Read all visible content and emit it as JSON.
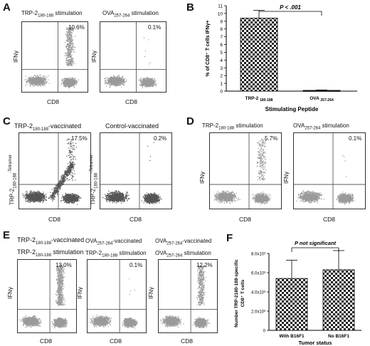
{
  "panels": {
    "A": {
      "letter": "A",
      "left_title": "TRP-2",
      "left_sub": "180-188",
      "left_suffix": " stimulation",
      "right_title": "OVA",
      "right_sub": "257-264",
      "right_suffix": " stimulation",
      "left_pct": "10.6%",
      "right_pct": "0.1%",
      "xlabel": "CD8",
      "ylabel": "IFNγ"
    },
    "B": {
      "letter": "B",
      "pvalue": "P < .001",
      "xlabel": "Stimulating Peptide",
      "ylabel": "% of CD8⁺ T cells IFNγ+"
    },
    "C": {
      "letter": "C",
      "left_title": "TRP-2",
      "left_sub": "180-188",
      "left_suffix": "-vaccinated",
      "right_title": "Control-vaccinated",
      "left_pct": "17.5%",
      "right_pct": "0.2%",
      "xlabel": "CD8",
      "ylabel_main": "TRP-2",
      "ylabel_sub": "180-188",
      "ylabel_suffix": "-Tetramer"
    },
    "D": {
      "letter": "D",
      "left_title": "TRP-2",
      "left_sub": "180-188",
      "left_suffix": " stimulation",
      "right_title": "OVA",
      "right_sub": "257-264",
      "right_suffix": " stimulation",
      "left_pct": "5.7%",
      "right_pct": "0.1%",
      "xlabel": "CD8",
      "ylabel": "IFNγ"
    },
    "E": {
      "letter": "E",
      "col1_top_main": "TRP-2",
      "col1_top_sub": "180-188",
      "col1_top_suffix": "-vaccinated",
      "col1_bot_main": "TRP-2",
      "col1_bot_sub": "180-188",
      "col1_bot_suffix": " stimulation",
      "col2_top_main": "OVA",
      "col2_top_sub": "257-264",
      "col2_top_suffix": "-vaccinated",
      "col2_bot_main": "TRP-2",
      "col2_bot_sub": "180-188",
      "col2_bot_suffix": " stimulation",
      "col3_top_main": "OVA",
      "col3_top_sub": "257-264",
      "col3_top_suffix": "-vaccinated",
      "col3_bot_main": "OVA",
      "col3_bot_sub": "257-264",
      "col3_bot_suffix": " stimulation",
      "pct1": "13.0%",
      "pct2": "0.1%",
      "pct3": "12.2%",
      "xlabel": "CD8",
      "ylabel": "IFNγ"
    },
    "F": {
      "letter": "F",
      "pvalue": "P not significant",
      "xlabel": "Tumor status",
      "ylabel_line1": "Number TRP-2180-188-specific",
      "ylabel_line2": "CD8⁺ T cells"
    }
  },
  "chart_data": [
    {
      "panel": "B",
      "type": "bar",
      "categories": [
        "TRP-2 180-188",
        "OVA 257-264"
      ],
      "values": [
        9.4,
        0.1
      ],
      "errors": [
        1.0,
        0.05
      ],
      "ylim": [
        0,
        11
      ],
      "yticks": [
        0,
        1,
        2,
        3,
        4,
        5,
        6,
        7,
        8,
        9,
        10,
        11
      ],
      "xlabel": "Stimulating Peptide",
      "ylabel": "% of CD8⁺ T cells IFNγ+",
      "annotation": "P < .001"
    },
    {
      "panel": "F",
      "type": "bar",
      "categories": [
        "With B16F1",
        "No B16F1"
      ],
      "values": [
        5400,
        6300
      ],
      "errors": [
        1900,
        2000
      ],
      "ylim": [
        0,
        8000
      ],
      "ytick_labels": [
        "0",
        "2.0x10³",
        "4.0x10³",
        "6.0x10³",
        "8.0x10³"
      ],
      "xlabel": "Tumor status",
      "annotation": "P not significant"
    }
  ]
}
